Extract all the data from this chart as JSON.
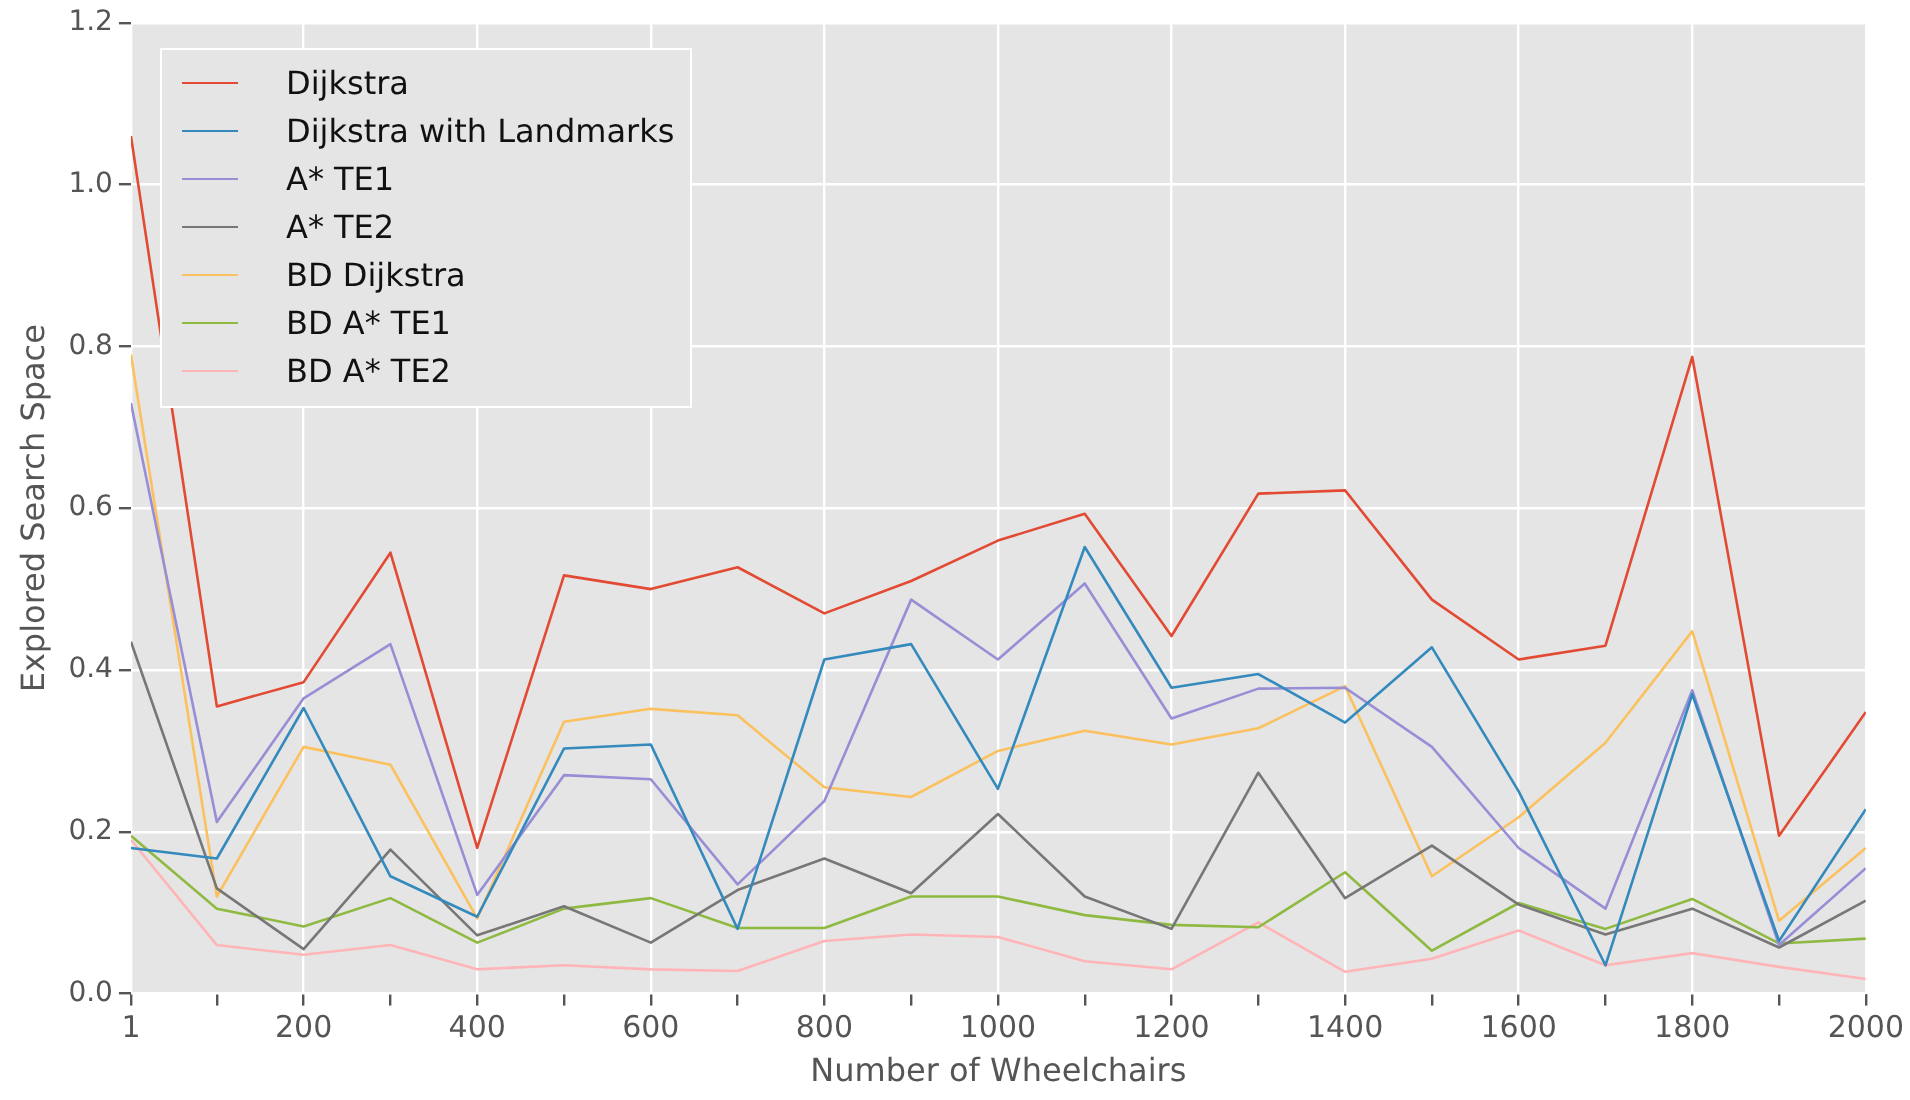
{
  "chart_data": {
    "type": "line",
    "xlabel": "Number of Wheelchairs",
    "ylabel": "Explored Search Space",
    "x": [
      1,
      100,
      200,
      300,
      400,
      500,
      600,
      700,
      800,
      900,
      1000,
      1100,
      1200,
      1300,
      1400,
      1500,
      1600,
      1700,
      1800,
      1900,
      2000
    ],
    "xlim": [
      1,
      2000
    ],
    "xticks": [
      1,
      {
        "value": 100,
        "label": null
      },
      200,
      {
        "value": 300,
        "label": null
      },
      400,
      {
        "value": 500,
        "label": null
      },
      600,
      {
        "value": 700,
        "label": null
      },
      800,
      {
        "value": 900,
        "label": null
      },
      1000,
      {
        "value": 1100,
        "label": null
      },
      1200,
      {
        "value": 1300,
        "label": null
      },
      1400,
      {
        "value": 1500,
        "label": null
      },
      1600,
      {
        "value": 1700,
        "label": null
      },
      1800,
      {
        "value": 1900,
        "label": null
      },
      2000
    ],
    "ylim": [
      0,
      1.2
    ],
    "yticks": [
      {
        "value": 0,
        "label": "0.0"
      },
      0.2,
      0.4,
      0.6,
      0.8,
      {
        "value": 1,
        "label": "1.0"
      },
      1.2
    ],
    "grid": true,
    "legend": "top left",
    "marker": "none",
    "line_style": "solid",
    "series": [
      {
        "name": "Dijkstra",
        "color": "#e24a33",
        "values": [
          1.06,
          0.355,
          0.385,
          0.545,
          0.18,
          0.517,
          0.5,
          0.527,
          0.47,
          0.51,
          0.56,
          0.593,
          0.442,
          0.618,
          0.622,
          0.487,
          0.413,
          0.43,
          0.787,
          0.195,
          0.348
        ]
      },
      {
        "name": "Dijkstra with Landmarks",
        "color": "#348abd",
        "values": [
          0.18,
          0.167,
          0.353,
          0.145,
          0.095,
          0.303,
          0.308,
          0.08,
          0.413,
          0.432,
          0.253,
          0.552,
          0.378,
          0.395,
          0.335,
          0.428,
          0.25,
          0.035,
          0.37,
          0.065,
          0.228
        ]
      },
      {
        "name": "A* TE1",
        "color": "#988ed5",
        "values": [
          0.73,
          0.212,
          0.365,
          0.432,
          0.122,
          0.27,
          0.265,
          0.135,
          0.238,
          0.487,
          0.413,
          0.507,
          0.34,
          0.377,
          0.378,
          0.305,
          0.18,
          0.105,
          0.375,
          0.06,
          0.155
        ]
      },
      {
        "name": "A* TE2",
        "color": "#777777",
        "values": [
          0.435,
          0.13,
          0.055,
          0.178,
          0.072,
          0.108,
          0.063,
          0.128,
          0.167,
          0.124,
          0.222,
          0.12,
          0.08,
          0.273,
          0.118,
          0.183,
          0.11,
          0.073,
          0.105,
          0.057,
          0.115
        ]
      },
      {
        "name": "BD Dijkstra",
        "color": "#fbc15e",
        "values": [
          0.79,
          0.12,
          0.305,
          0.283,
          0.093,
          0.336,
          0.352,
          0.344,
          0.255,
          0.243,
          0.3,
          0.325,
          0.308,
          0.328,
          0.38,
          0.145,
          0.218,
          0.31,
          0.448,
          0.09,
          0.18
        ]
      },
      {
        "name": "BD A* TE1",
        "color": "#8eba42",
        "values": [
          0.195,
          0.105,
          0.083,
          0.118,
          0.063,
          0.105,
          0.118,
          0.081,
          0.081,
          0.12,
          0.12,
          0.097,
          0.085,
          0.082,
          0.15,
          0.053,
          0.112,
          0.08,
          0.117,
          0.062,
          0.068
        ]
      },
      {
        "name": "BD A* TE2",
        "color": "#ffb5b8",
        "values": [
          0.19,
          0.06,
          0.048,
          0.06,
          0.03,
          0.035,
          0.03,
          0.028,
          0.065,
          0.073,
          0.07,
          0.04,
          0.03,
          0.088,
          0.027,
          0.043,
          0.078,
          0.035,
          0.05,
          0.033,
          0.018
        ]
      }
    ]
  }
}
